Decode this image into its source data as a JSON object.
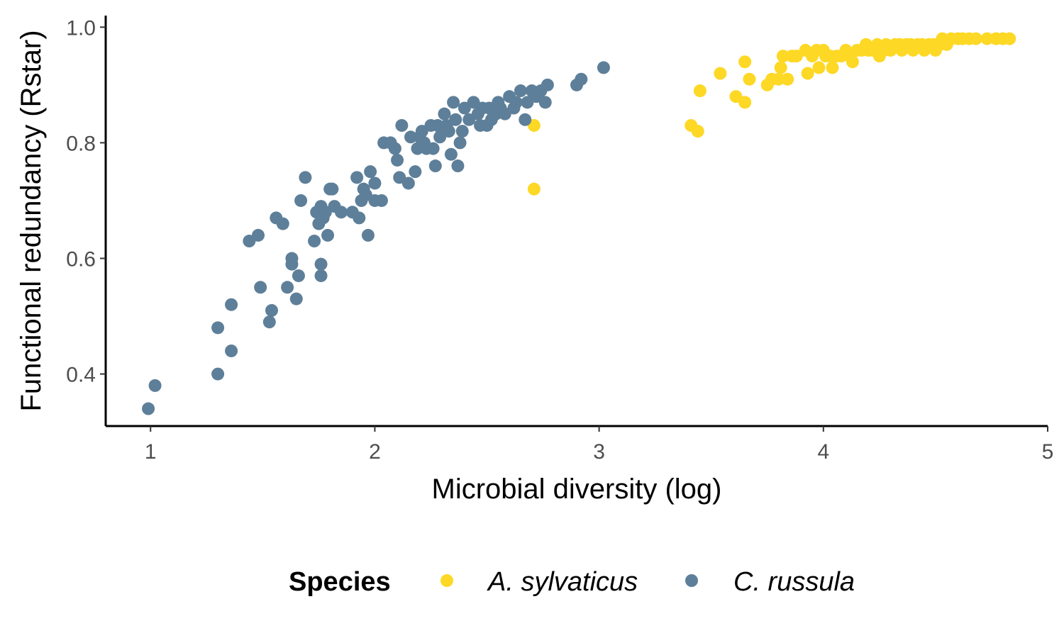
{
  "chart_data": {
    "type": "scatter",
    "title": "",
    "xlabel": "Microbial diversity (log)",
    "ylabel": "Functional redundancy (Rstar)",
    "xlim": [
      0.8,
      5.0
    ],
    "ylim": [
      0.31,
      1.02
    ],
    "x_ticks": [
      1,
      2,
      3,
      4,
      5
    ],
    "x_tick_labels": [
      "1",
      "2",
      "3",
      "4",
      "5"
    ],
    "y_ticks": [
      0.4,
      0.6,
      0.8,
      1.0
    ],
    "y_tick_labels": [
      "0.4",
      "0.6",
      "0.8",
      "1.0"
    ],
    "grid": false,
    "legend": {
      "title": "Species",
      "placement": "bottom",
      "entries": [
        "A. sylvaticus",
        "C. russula"
      ]
    },
    "series": [
      {
        "name": "A. sylvaticus",
        "color": "#FDD825",
        "points": [
          [
            2.71,
            0.83
          ],
          [
            2.71,
            0.72
          ],
          [
            3.41,
            0.83
          ],
          [
            3.44,
            0.82
          ],
          [
            3.45,
            0.89
          ],
          [
            3.54,
            0.92
          ],
          [
            3.61,
            0.88
          ],
          [
            3.65,
            0.87
          ],
          [
            3.65,
            0.94
          ],
          [
            3.67,
            0.91
          ],
          [
            3.75,
            0.9
          ],
          [
            3.77,
            0.91
          ],
          [
            3.8,
            0.91
          ],
          [
            3.81,
            0.93
          ],
          [
            3.82,
            0.95
          ],
          [
            3.84,
            0.91
          ],
          [
            3.86,
            0.95
          ],
          [
            3.88,
            0.95
          ],
          [
            3.92,
            0.96
          ],
          [
            3.93,
            0.92
          ],
          [
            3.95,
            0.95
          ],
          [
            3.97,
            0.96
          ],
          [
            3.98,
            0.93
          ],
          [
            4.0,
            0.96
          ],
          [
            4.01,
            0.95
          ],
          [
            4.03,
            0.95
          ],
          [
            4.04,
            0.93
          ],
          [
            4.06,
            0.95
          ],
          [
            4.08,
            0.95
          ],
          [
            4.1,
            0.96
          ],
          [
            4.12,
            0.95
          ],
          [
            4.13,
            0.94
          ],
          [
            4.15,
            0.96
          ],
          [
            4.17,
            0.96
          ],
          [
            4.19,
            0.97
          ],
          [
            4.2,
            0.96
          ],
          [
            4.22,
            0.96
          ],
          [
            4.24,
            0.97
          ],
          [
            4.25,
            0.95
          ],
          [
            4.27,
            0.96
          ],
          [
            4.28,
            0.97
          ],
          [
            4.3,
            0.96
          ],
          [
            4.32,
            0.97
          ],
          [
            4.34,
            0.97
          ],
          [
            4.35,
            0.96
          ],
          [
            4.37,
            0.97
          ],
          [
            4.39,
            0.97
          ],
          [
            4.4,
            0.96
          ],
          [
            4.42,
            0.97
          ],
          [
            4.44,
            0.97
          ],
          [
            4.45,
            0.96
          ],
          [
            4.47,
            0.97
          ],
          [
            4.49,
            0.97
          ],
          [
            4.5,
            0.96
          ],
          [
            4.52,
            0.97
          ],
          [
            4.53,
            0.98
          ],
          [
            4.55,
            0.97
          ],
          [
            4.57,
            0.98
          ],
          [
            4.6,
            0.98
          ],
          [
            4.62,
            0.98
          ],
          [
            4.65,
            0.98
          ],
          [
            4.68,
            0.98
          ],
          [
            4.73,
            0.98
          ],
          [
            4.77,
            0.98
          ],
          [
            4.8,
            0.98
          ],
          [
            4.83,
            0.98
          ]
        ]
      },
      {
        "name": "C. russula",
        "color": "#5E7F99",
        "points": [
          [
            0.99,
            0.34
          ],
          [
            1.02,
            0.38
          ],
          [
            1.3,
            0.4
          ],
          [
            1.3,
            0.48
          ],
          [
            1.36,
            0.44
          ],
          [
            1.36,
            0.52
          ],
          [
            1.44,
            0.63
          ],
          [
            1.48,
            0.64
          ],
          [
            1.49,
            0.55
          ],
          [
            1.53,
            0.49
          ],
          [
            1.54,
            0.51
          ],
          [
            1.56,
            0.67
          ],
          [
            1.59,
            0.66
          ],
          [
            1.61,
            0.55
          ],
          [
            1.63,
            0.6
          ],
          [
            1.63,
            0.59
          ],
          [
            1.65,
            0.53
          ],
          [
            1.66,
            0.57
          ],
          [
            1.67,
            0.7
          ],
          [
            1.69,
            0.74
          ],
          [
            1.73,
            0.63
          ],
          [
            1.74,
            0.68
          ],
          [
            1.75,
            0.66
          ],
          [
            1.76,
            0.69
          ],
          [
            1.76,
            0.59
          ],
          [
            1.76,
            0.57
          ],
          [
            1.77,
            0.67
          ],
          [
            1.78,
            0.68
          ],
          [
            1.79,
            0.64
          ],
          [
            1.8,
            0.72
          ],
          [
            1.81,
            0.72
          ],
          [
            1.82,
            0.69
          ],
          [
            1.85,
            0.68
          ],
          [
            1.9,
            0.68
          ],
          [
            1.92,
            0.74
          ],
          [
            1.93,
            0.67
          ],
          [
            1.94,
            0.7
          ],
          [
            1.95,
            0.72
          ],
          [
            1.96,
            0.71
          ],
          [
            1.97,
            0.64
          ],
          [
            1.98,
            0.75
          ],
          [
            2.0,
            0.73
          ],
          [
            2.0,
            0.7
          ],
          [
            2.03,
            0.7
          ],
          [
            2.04,
            0.8
          ],
          [
            2.07,
            0.8
          ],
          [
            2.09,
            0.79
          ],
          [
            2.1,
            0.77
          ],
          [
            2.11,
            0.74
          ],
          [
            2.12,
            0.83
          ],
          [
            2.15,
            0.73
          ],
          [
            2.16,
            0.81
          ],
          [
            2.18,
            0.75
          ],
          [
            2.19,
            0.79
          ],
          [
            2.2,
            0.81
          ],
          [
            2.21,
            0.82
          ],
          [
            2.22,
            0.8
          ],
          [
            2.23,
            0.79
          ],
          [
            2.25,
            0.83
          ],
          [
            2.26,
            0.79
          ],
          [
            2.27,
            0.76
          ],
          [
            2.28,
            0.83
          ],
          [
            2.29,
            0.81
          ],
          [
            2.3,
            0.82
          ],
          [
            2.31,
            0.85
          ],
          [
            2.32,
            0.83
          ],
          [
            2.33,
            0.82
          ],
          [
            2.34,
            0.78
          ],
          [
            2.35,
            0.87
          ],
          [
            2.36,
            0.84
          ],
          [
            2.37,
            0.76
          ],
          [
            2.38,
            0.8
          ],
          [
            2.39,
            0.82
          ],
          [
            2.4,
            0.86
          ],
          [
            2.42,
            0.84
          ],
          [
            2.44,
            0.87
          ],
          [
            2.46,
            0.85
          ],
          [
            2.47,
            0.83
          ],
          [
            2.48,
            0.86
          ],
          [
            2.5,
            0.83
          ],
          [
            2.51,
            0.86
          ],
          [
            2.52,
            0.84
          ],
          [
            2.53,
            0.85
          ],
          [
            2.54,
            0.85
          ],
          [
            2.55,
            0.87
          ],
          [
            2.56,
            0.86
          ],
          [
            2.58,
            0.85
          ],
          [
            2.6,
            0.88
          ],
          [
            2.62,
            0.86
          ],
          [
            2.63,
            0.87
          ],
          [
            2.65,
            0.89
          ],
          [
            2.67,
            0.84
          ],
          [
            2.68,
            0.87
          ],
          [
            2.7,
            0.89
          ],
          [
            2.72,
            0.88
          ],
          [
            2.74,
            0.89
          ],
          [
            2.76,
            0.87
          ],
          [
            2.77,
            0.9
          ],
          [
            2.9,
            0.9
          ],
          [
            2.92,
            0.91
          ],
          [
            3.02,
            0.93
          ]
        ]
      }
    ]
  }
}
